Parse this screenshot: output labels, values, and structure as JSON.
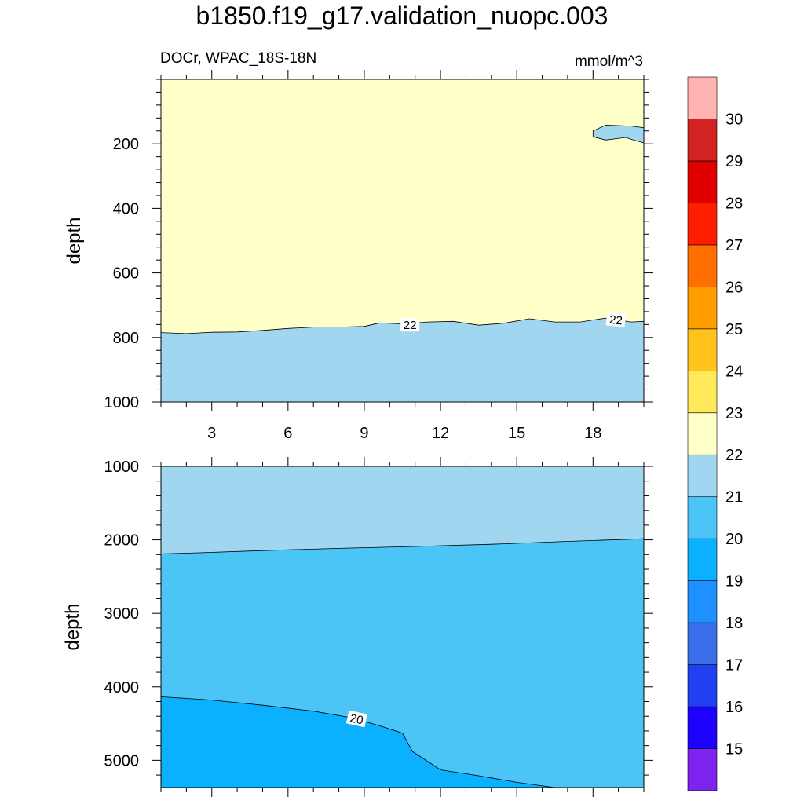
{
  "title": "b1850.f19_g17.validation_nuopc.003",
  "subtitle_left": "DOCr, WPAC_18S-18N",
  "subtitle_right": "mmol/m^3",
  "chart_data": [
    {
      "type": "contour",
      "panel": "upper",
      "ylabel": "depth",
      "y_reversed": true,
      "xlim": [
        1,
        20
      ],
      "ylim": [
        1000,
        0
      ],
      "x_ticks": [
        3,
        6,
        9,
        12,
        15,
        18
      ],
      "y_ticks": [
        200,
        400,
        600,
        800,
        1000
      ],
      "grid": false,
      "regions": [
        {
          "range": "21-22",
          "color": "#a0d6ef"
        },
        {
          "range": "22-23",
          "color": "#ffffc8"
        }
      ],
      "contours": [
        {
          "level": 22,
          "label": "22",
          "points": [
            [
              1,
              785
            ],
            [
              2,
              788
            ],
            [
              3,
              784
            ],
            [
              4,
              783
            ],
            [
              5,
              778
            ],
            [
              6,
              772
            ],
            [
              7,
              768
            ],
            [
              8,
              768
            ],
            [
              9,
              766
            ],
            [
              9.6,
              755
            ],
            [
              10.5,
              758
            ],
            [
              11.5,
              752
            ],
            [
              12.5,
              750
            ],
            [
              13.5,
              762
            ],
            [
              14.5,
              756
            ],
            [
              15.5,
              742
            ],
            [
              16.5,
              752
            ],
            [
              17.5,
              752
            ],
            [
              18.5,
              740
            ],
            [
              19.5,
              752
            ],
            [
              20,
              750
            ]
          ],
          "label_positions": [
            [
              10.8,
              762
            ],
            [
              18.9,
              746
            ]
          ]
        },
        {
          "level": 22,
          "label": "",
          "points": [
            [
              18,
              160
            ],
            [
              18.5,
              142
            ],
            [
              19.5,
              145
            ],
            [
              20,
              150
            ],
            [
              20,
              197
            ],
            [
              19.5,
              186
            ],
            [
              19.3,
              180
            ],
            [
              18.5,
              188
            ],
            [
              18,
              178
            ]
          ]
        }
      ]
    },
    {
      "type": "contour",
      "panel": "lower",
      "ylabel": "depth",
      "y_reversed": true,
      "xlim": [
        1,
        20
      ],
      "ylim": [
        5370,
        1000
      ],
      "x_ticks": [
        3,
        6,
        9,
        12,
        15,
        18
      ],
      "y_ticks": [
        1000,
        2000,
        3000,
        4000,
        5000
      ],
      "grid": false,
      "regions": [
        {
          "range": "21-22",
          "color": "#a0d6ef"
        },
        {
          "range": "20-21",
          "color": "#4bc4f6"
        },
        {
          "range": "19-20",
          "color": "#0bb0ff"
        }
      ],
      "contours": [
        {
          "level": 21,
          "label": "",
          "points": [
            [
              1,
              2190
            ],
            [
              2.5,
              2175
            ],
            [
              5,
              2145
            ],
            [
              8,
              2115
            ],
            [
              11,
              2090
            ],
            [
              14,
              2060
            ],
            [
              17,
              2020
            ],
            [
              20,
              1985
            ]
          ]
        },
        {
          "level": 20,
          "label": "20",
          "points": [
            [
              1,
              4135
            ],
            [
              3,
              4180
            ],
            [
              5,
              4250
            ],
            [
              7,
              4330
            ],
            [
              8.5,
              4420
            ],
            [
              9.7,
              4540
            ],
            [
              10.5,
              4630
            ],
            [
              10.9,
              4880
            ],
            [
              12,
              5130
            ],
            [
              13.5,
              5210
            ],
            [
              15,
              5300
            ],
            [
              16.5,
              5370
            ]
          ],
          "label_positions": [
            [
              8.7,
              4440
            ]
          ]
        }
      ]
    }
  ],
  "colorbar": {
    "levels": [
      15,
      16,
      17,
      18,
      19,
      20,
      21,
      22,
      23,
      24,
      25,
      26,
      27,
      28,
      29,
      30
    ],
    "colors": [
      "#7e22ee",
      "#1e00ff",
      "#2140f2",
      "#3a6ee8",
      "#1e90ff",
      "#0bb0ff",
      "#4bc4f6",
      "#a0d6ef",
      "#ffffc8",
      "#ffe95a",
      "#ffc31c",
      "#ff9e00",
      "#ff6e00",
      "#ff1e00",
      "#e00000",
      "#d22222",
      "#ffb3b3"
    ]
  }
}
